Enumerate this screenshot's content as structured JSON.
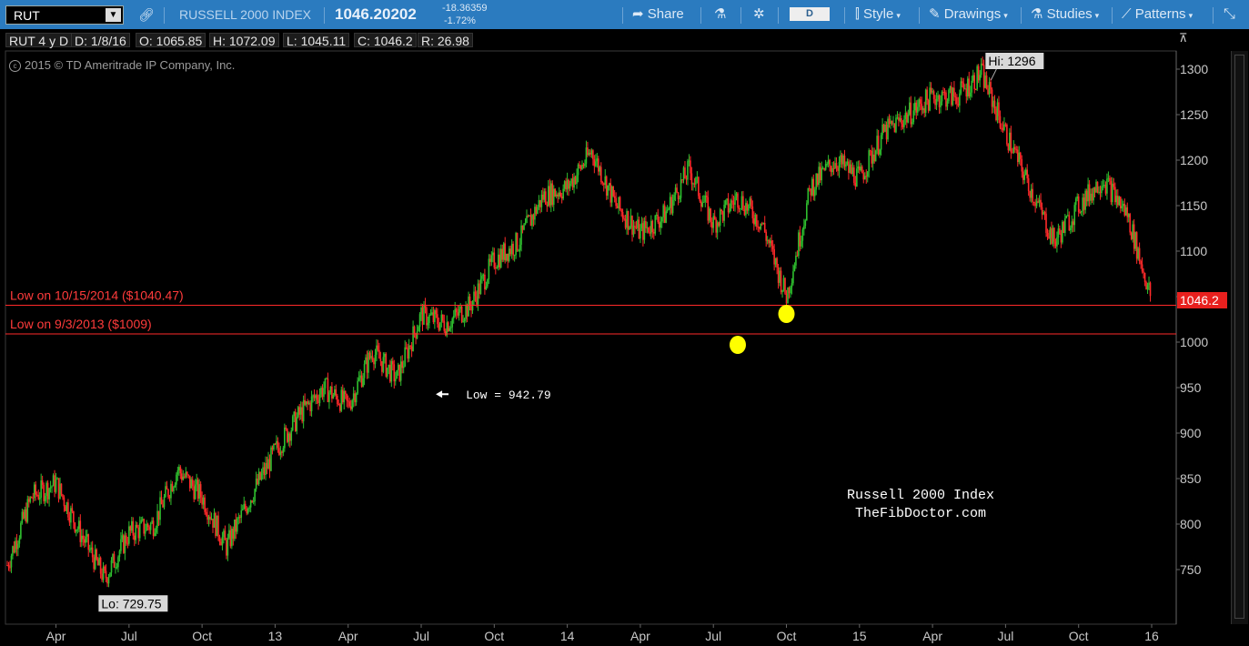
{
  "toolbar": {
    "symbol": "RUT",
    "index_name": "RUSSELL 2000 INDEX",
    "last_price": "1046.20202",
    "change": "-18.36359",
    "change_pct": "-1.72%",
    "share_label": "Share",
    "period_label": "D",
    "style_label": "Style",
    "drawings_label": "Drawings",
    "studies_label": "Studies",
    "patterns_label": "Patterns"
  },
  "infobar": {
    "series": "RUT 4 y D",
    "date": "D: 1/8/16",
    "open": "O: 1065.85",
    "high": "H: 1072.09",
    "low": "L: 1045.11",
    "close": "C: 1046.2",
    "range": "R: 26.98"
  },
  "copyright": "2015 © TD Ameritrade IP Company, Inc.",
  "colors": {
    "toolbar": "#2b7bbf",
    "up_candle": "#2fbf2f",
    "down_candle": "#ff2a2a",
    "support_line": "#ff2a2a",
    "marker": "#ffff00"
  },
  "chart_data": {
    "type": "line",
    "x": [
      "2012-02",
      "2012-03",
      "2012-04",
      "2012-05",
      "2012-06",
      "2012-07",
      "2012-08",
      "2012-09",
      "2012-10",
      "2012-11",
      "2012-12",
      "2013-01",
      "2013-02",
      "2013-03",
      "2013-04",
      "2013-05",
      "2013-06",
      "2013-07",
      "2013-08",
      "2013-09",
      "2013-10",
      "2013-11",
      "2013-12",
      "2014-01",
      "2014-02",
      "2014-03",
      "2014-04",
      "2014-05",
      "2014-06",
      "2014-07",
      "2014-08",
      "2014-09",
      "2014-10",
      "2014-11",
      "2014-12",
      "2015-01",
      "2015-02",
      "2015-03",
      "2015-04",
      "2015-05",
      "2015-06",
      "2015-07",
      "2015-08",
      "2015-09",
      "2015-10",
      "2015-11",
      "2015-12",
      "2016-01"
    ],
    "series": [
      {
        "values": [
          755,
          830,
          845,
          790,
          740,
          790,
          800,
          860,
          830,
          775,
          830,
          880,
          920,
          950,
          930,
          990,
          960,
          1030,
          1020,
          1040,
          1090,
          1110,
          1160,
          1170,
          1210,
          1150,
          1120,
          1140,
          1190,
          1130,
          1160,
          1130,
          1050,
          1170,
          1200,
          1180,
          1230,
          1250,
          1270,
          1270,
          1296,
          1230,
          1170,
          1110,
          1150,
          1180,
          1140,
          1046
        ]
      }
    ],
    "x_ticks": [
      "Apr",
      "Jul",
      "Oct",
      "13",
      "Apr",
      "Jul",
      "Oct",
      "14",
      "Apr",
      "Jul",
      "Oct",
      "15",
      "Apr",
      "Jul",
      "Oct",
      "16"
    ],
    "y_ticks": [
      750,
      800,
      850,
      900,
      950,
      1000,
      1050,
      1100,
      1150,
      1200,
      1250,
      1300
    ],
    "ylim": [
      690,
      1320
    ],
    "last_value_label": "1046.2",
    "hi_label": "Hi: 1296",
    "lo_label": "Lo: 729.75",
    "low_annotation": "Low = 942.79",
    "support_lines": [
      {
        "label": "Low on 10/15/2014 ($1040.47)",
        "value": 1040.47
      },
      {
        "label": "Low on 9/3/2013 ($1009)",
        "value": 1009
      }
    ],
    "markers": [
      {
        "x": "2014-08",
        "value": 997
      },
      {
        "x": "2014-10",
        "value": 1031
      }
    ],
    "watermark_line1": "Russell 2000 Index",
    "watermark_line2": "TheFibDoctor.com"
  }
}
